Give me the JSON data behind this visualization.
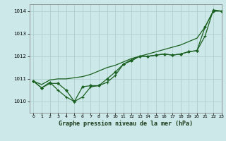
{
  "title": "Graphe pression niveau de la mer (hPa)",
  "background_color": "#cce8e8",
  "grid_color": "#aacaca",
  "line_color": "#1a6020",
  "xlim": [
    -0.5,
    23
  ],
  "ylim": [
    1009.5,
    1014.3
  ],
  "yticks": [
    1010,
    1011,
    1012,
    1013,
    1014
  ],
  "xticks": [
    0,
    1,
    2,
    3,
    4,
    5,
    6,
    7,
    8,
    9,
    10,
    11,
    12,
    13,
    14,
    15,
    16,
    17,
    18,
    19,
    20,
    21,
    22,
    23
  ],
  "series1_x": [
    0,
    1,
    2,
    3,
    4,
    5,
    6,
    7,
    8,
    9,
    10,
    11,
    12,
    13,
    14,
    15,
    16,
    17,
    18,
    19,
    20,
    21,
    22,
    23
  ],
  "series1_y": [
    1010.9,
    1010.75,
    1010.95,
    1011.0,
    1011.0,
    1011.05,
    1011.1,
    1011.2,
    1011.35,
    1011.5,
    1011.6,
    1011.75,
    1011.9,
    1012.0,
    1012.1,
    1012.2,
    1012.3,
    1012.4,
    1012.5,
    1012.65,
    1012.8,
    1013.3,
    1014.0,
    1014.0
  ],
  "series2_x": [
    0,
    1,
    2,
    3,
    4,
    5,
    6,
    7,
    8,
    9,
    10,
    11,
    12,
    13,
    14,
    15,
    16,
    17,
    18,
    19,
    20,
    21,
    22,
    23
  ],
  "series2_y": [
    1010.9,
    1010.6,
    1010.8,
    1010.8,
    1010.5,
    1010.0,
    1010.65,
    1010.7,
    1010.7,
    1011.0,
    1011.3,
    1011.65,
    1011.8,
    1012.0,
    1012.0,
    1012.05,
    1012.1,
    1012.05,
    1012.1,
    1012.2,
    1012.25,
    1013.3,
    1014.0,
    1014.0
  ],
  "series3_x": [
    0,
    1,
    2,
    3,
    4,
    5,
    6,
    7,
    8,
    9,
    10,
    11,
    12,
    13,
    14,
    15,
    16,
    17,
    18,
    19,
    20,
    21,
    22,
    23
  ],
  "series3_y": [
    1010.9,
    1010.6,
    1010.85,
    1010.5,
    1010.2,
    1010.0,
    1010.2,
    1010.65,
    1010.7,
    1010.85,
    1011.15,
    1011.65,
    1011.85,
    1012.0,
    1012.0,
    1012.05,
    1012.1,
    1012.05,
    1012.1,
    1012.2,
    1012.25,
    1012.9,
    1014.05,
    1014.0
  ]
}
